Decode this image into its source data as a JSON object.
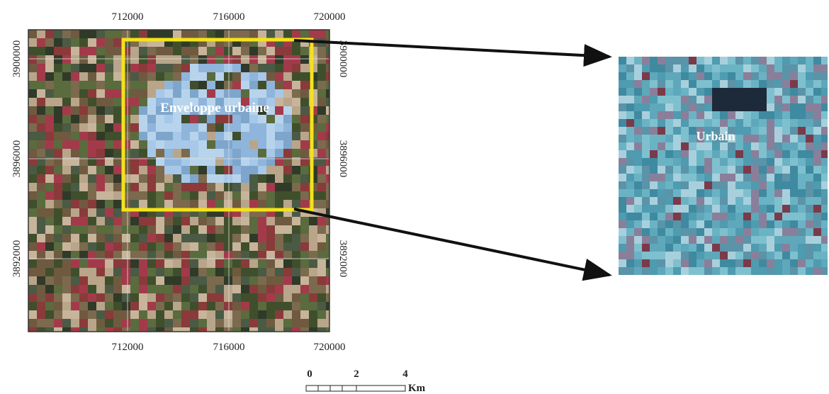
{
  "map": {
    "top_ticks": [
      "712000",
      "716000",
      "720000"
    ],
    "bottom_ticks": [
      "712000",
      "716000",
      "720000"
    ],
    "left_ticks": [
      "3900000",
      "3896000",
      "3892000"
    ],
    "right_ticks": [
      "3900000",
      "3896000",
      "3892000"
    ],
    "label": "Enveloppe urbaine"
  },
  "zoom": {
    "label": "Urbain"
  },
  "scale": {
    "ticks": [
      "0",
      "2",
      "4"
    ],
    "unit": "Km"
  }
}
